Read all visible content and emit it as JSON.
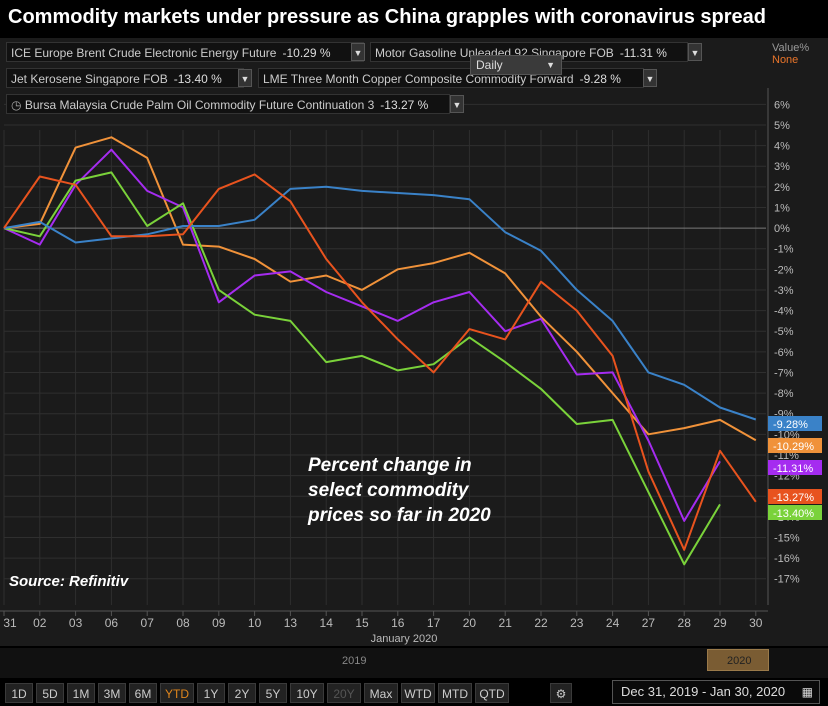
{
  "title": "Commodity markets under pressure as China grapples with coronavirus spread",
  "legend": [
    {
      "name": "ICE Europe Brent Crude Electronic Energy Future",
      "value": "-10.29 %",
      "color": "#f0923a"
    },
    {
      "name": "Motor Gasoline Unleaded 92 Singapore FOB",
      "value": "-11.31 %",
      "color": "#a52cf0"
    },
    {
      "name": "Jet Kerosene Singapore FOB",
      "value": "-13.40 %",
      "color": "#7ad23a"
    },
    {
      "name": "LME Three Month Copper Composite Commodity Forward",
      "value": "-9.28 %",
      "color": "#3a82c8"
    },
    {
      "name": "Bursa Malaysia Crude Palm Oil Commodity Future Continuation 3",
      "value": "-13.27 %",
      "color": "#e8531e"
    }
  ],
  "interval": "Daily",
  "value_label": "Value%",
  "value_mode": "None",
  "annotation_lines": [
    "Percent change in",
    "select commodity",
    "prices so far in 2020"
  ],
  "source": "Source: Refinitiv",
  "navigator": {
    "label_2019": "2019",
    "label_2020": "2020"
  },
  "toolbar": {
    "buttons": [
      "1D",
      "5D",
      "1M",
      "3M",
      "6M",
      "YTD",
      "1Y",
      "2Y",
      "5Y",
      "10Y",
      "20Y",
      "Max",
      "WTD",
      "MTD",
      "QTD"
    ],
    "active": "YTD",
    "disabled": "20Y",
    "date_range": "Dec 31, 2019 - Jan 30, 2020"
  },
  "chart_data": {
    "type": "line",
    "title": "Commodity markets under pressure as China grapples with coronavirus spread",
    "xlabel": "January 2020",
    "ylabel": "Value%",
    "categories": [
      "31",
      "02",
      "03",
      "06",
      "07",
      "08",
      "09",
      "10",
      "13",
      "14",
      "15",
      "16",
      "17",
      "20",
      "21",
      "22",
      "23",
      "24",
      "27",
      "28",
      "29",
      "30"
    ],
    "ylim": [
      -17.5,
      6.5
    ],
    "yticks": [
      6,
      5,
      4,
      3,
      2,
      1,
      0,
      -1,
      -2,
      -3,
      -4,
      -5,
      -6,
      -7,
      -8,
      -9,
      -10,
      -11,
      -12,
      -13,
      -14,
      -15,
      -16,
      -17
    ],
    "ytick_labels": [
      "6%",
      "5%",
      "4%",
      "3%",
      "2%",
      "1%",
      "0%",
      "-1%",
      "-2%",
      "-3%",
      "-4%",
      "-5%",
      "-6%",
      "-7%",
      "-8%",
      "-9%",
      "-10%",
      "-11%",
      "-12%",
      "-13%",
      "-14%",
      "-15%",
      "-16%",
      "-17%"
    ],
    "series": [
      {
        "name": "ICE Europe Brent Crude Electronic Energy Future",
        "color": "#f0923a",
        "end_label": "-10.29%",
        "values": [
          0,
          0.2,
          3.9,
          4.4,
          3.4,
          -0.8,
          -0.9,
          -1.5,
          -2.6,
          -2.3,
          -3.0,
          -2.0,
          -1.7,
          -1.2,
          -2.2,
          -4.3,
          -6.0,
          -8.0,
          -10.0,
          -9.7,
          -9.3,
          -10.29
        ]
      },
      {
        "name": "Motor Gasoline Unleaded 92 Singapore FOB",
        "color": "#a52cf0",
        "end_label": "-11.31%",
        "values": [
          0,
          -0.8,
          2.1,
          3.8,
          1.8,
          1.0,
          -3.6,
          -2.3,
          -2.1,
          -3.1,
          -3.8,
          -4.5,
          -3.6,
          -3.1,
          -5.0,
          -4.4,
          -7.1,
          -7.0,
          -10.3,
          -14.2,
          -11.31,
          null
        ]
      },
      {
        "name": "Jet Kerosene Singapore FOB",
        "color": "#7ad23a",
        "end_label": "-13.40%",
        "values": [
          0,
          -0.4,
          2.3,
          2.7,
          0.1,
          1.2,
          -3.0,
          -4.2,
          -4.5,
          -6.5,
          -6.2,
          -6.9,
          -6.6,
          -5.3,
          -6.5,
          -7.8,
          -9.5,
          -9.3,
          -12.8,
          -16.3,
          -13.4,
          null
        ]
      },
      {
        "name": "LME Three Month Copper Composite Commodity Forward",
        "color": "#3a82c8",
        "end_label": "-9.28%",
        "values": [
          0,
          0.3,
          -0.7,
          -0.5,
          -0.3,
          0.1,
          0.1,
          0.4,
          1.9,
          2.0,
          1.8,
          1.7,
          1.6,
          1.4,
          -0.2,
          -1.1,
          -3.0,
          -4.5,
          -7.0,
          -7.6,
          -8.7,
          -9.28
        ]
      },
      {
        "name": "Bursa Malaysia Crude Palm Oil Commodity Future Continuation 3",
        "color": "#e8531e",
        "end_label": "-13.27%",
        "values": [
          0,
          2.5,
          2.1,
          -0.4,
          -0.4,
          -0.3,
          1.9,
          2.6,
          1.3,
          -1.5,
          -3.6,
          -5.4,
          -7.0,
          -4.9,
          -5.4,
          -2.6,
          -4.0,
          -6.2,
          -11.8,
          -15.6,
          -10.8,
          -13.27
        ]
      }
    ]
  }
}
